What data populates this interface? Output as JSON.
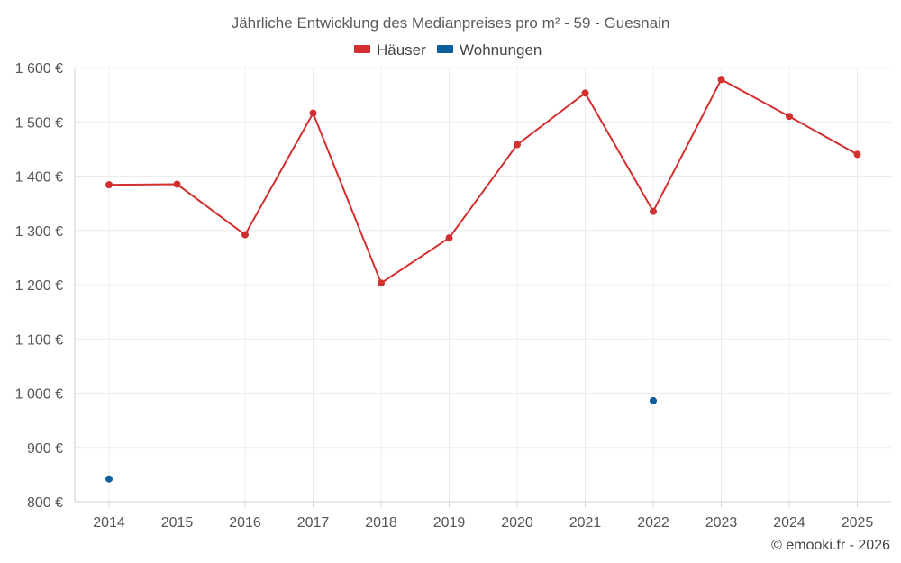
{
  "colors": {
    "houses": "#d32f2f",
    "apartments": "#0d5e9b"
  },
  "chart_data": {
    "type": "line",
    "title": "Jährliche Entwicklung des Medianpreises pro m² - 59 - Guesnain",
    "xlabel": "",
    "ylabel": "",
    "x": [
      "2014",
      "2015",
      "2016",
      "2017",
      "2018",
      "2019",
      "2020",
      "2021",
      "2022",
      "2023",
      "2024",
      "2025"
    ],
    "y_ticks": [
      "1 600 €",
      "1 500 €",
      "1 400 €",
      "1 300 €",
      "1 200 €",
      "1 100 €",
      "1 000 €",
      "900 €",
      "800 €"
    ],
    "ylim": [
      800,
      1600
    ],
    "legend_position": "top",
    "grid": true,
    "series": [
      {
        "name": "Häuser",
        "color": "#d32f2f",
        "values": [
          1384,
          1385,
          1292,
          1516,
          1203,
          1286,
          1458,
          1553,
          1335,
          1578,
          1510,
          1440
        ]
      },
      {
        "name": "Wohnungen",
        "color": "#0d5e9b",
        "values": [
          842,
          null,
          null,
          null,
          null,
          null,
          null,
          null,
          986,
          null,
          null,
          null
        ]
      }
    ],
    "credit": "© emooki.fr - 2026"
  }
}
